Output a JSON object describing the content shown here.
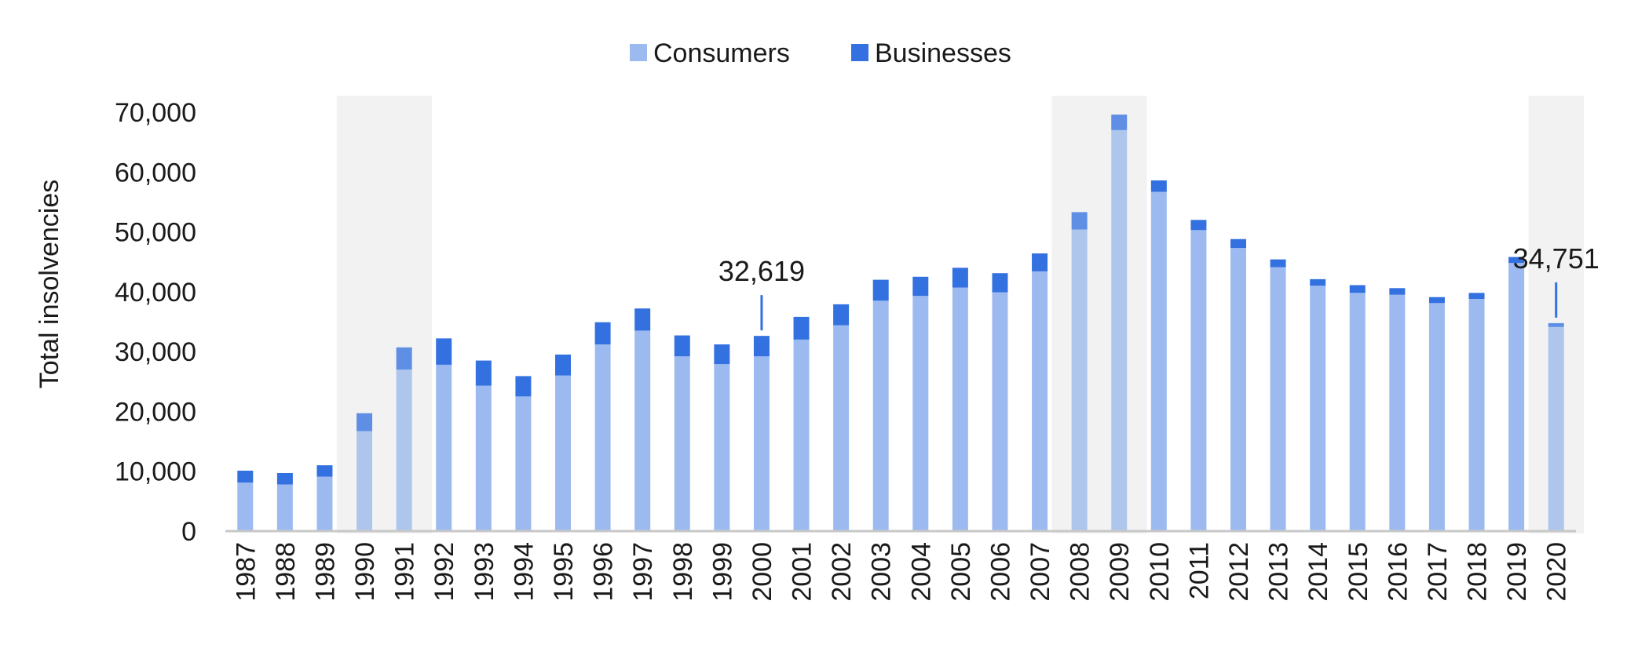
{
  "chart_data": {
    "type": "bar",
    "stacked": true,
    "title": "",
    "xlabel": "",
    "ylabel": "Total insolvencies",
    "ylim": [
      0,
      70000
    ],
    "yticks": [
      0,
      10000,
      20000,
      30000,
      40000,
      50000,
      60000,
      70000
    ],
    "ytick_labels": [
      "0",
      "10,000",
      "20,000",
      "30,000",
      "40,000",
      "50,000",
      "60,000",
      "70,000"
    ],
    "grid": false,
    "legend": "top-center",
    "categories": [
      "1987",
      "1988",
      "1989",
      "1990",
      "1991",
      "1992",
      "1993",
      "1994",
      "1995",
      "1996",
      "1997",
      "1998",
      "1999",
      "2000",
      "2001",
      "2002",
      "2003",
      "2004",
      "2005",
      "2006",
      "2007",
      "2008",
      "2009",
      "2010",
      "2011",
      "2012",
      "2013",
      "2014",
      "2015",
      "2016",
      "2017",
      "2018",
      "2019",
      "2020"
    ],
    "series": [
      {
        "name": "Consumers",
        "color": "#9dbaf0",
        "values": [
          8100,
          7800,
          9100,
          16700,
          27000,
          27800,
          24300,
          22500,
          26000,
          31200,
          33500,
          29200,
          27900,
          29200,
          32000,
          34400,
          38500,
          39300,
          40700,
          39900,
          43400,
          50400,
          67000,
          56700,
          50300,
          47300,
          44100,
          41000,
          39800,
          39500,
          38100,
          38800,
          44800,
          34100
        ]
      },
      {
        "name": "Businesses",
        "color": "#3370e0",
        "values": [
          2000,
          1900,
          1900,
          3000,
          3700,
          4400,
          4200,
          3400,
          3500,
          3700,
          3700,
          3500,
          3300,
          3419,
          3800,
          3500,
          3500,
          3200,
          3300,
          3200,
          3000,
          2900,
          2600,
          1900,
          1700,
          1500,
          1300,
          1100,
          1300,
          1100,
          1000,
          1000,
          1000,
          651
        ]
      }
    ],
    "highlighted_periods": [
      [
        "1990",
        "1991"
      ],
      [
        "2008",
        "2009"
      ],
      [
        "2020",
        "2020"
      ]
    ],
    "annotations": [
      {
        "category": "2000",
        "text": "32,619"
      },
      {
        "category": "2020",
        "text": "34,751"
      }
    ]
  }
}
